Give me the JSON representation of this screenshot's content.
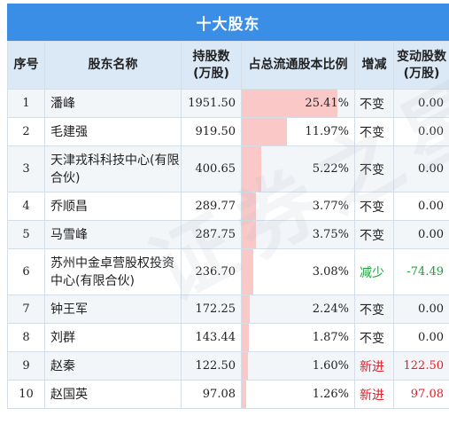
{
  "title": "十大股东",
  "headers": {
    "rank": "序号",
    "name": "股东名称",
    "shares_line1": "持股数",
    "shares_line2": "(万股)",
    "ratio": "占总流通股本比例",
    "change_type": "增减",
    "change_line1": "变动股数",
    "change_line2": "(万股)"
  },
  "rows": [
    {
      "rank": "1",
      "name": "潘峰",
      "shares": "1951.50",
      "ratio": "25.41%",
      "ratio_value": 25.41,
      "change_type": "不变",
      "change_type_color": "normal",
      "change": "0.00"
    },
    {
      "rank": "2",
      "name": "毛建强",
      "shares": "919.50",
      "ratio": "11.97%",
      "ratio_value": 11.97,
      "change_type": "不变",
      "change_type_color": "normal",
      "change": "0.00"
    },
    {
      "rank": "3",
      "name": "天津戎科科技中心(有限合伙)",
      "shares": "400.65",
      "ratio": "5.22%",
      "ratio_value": 5.22,
      "change_type": "不变",
      "change_type_color": "normal",
      "change": "0.00"
    },
    {
      "rank": "4",
      "name": "乔顺昌",
      "shares": "289.77",
      "ratio": "3.77%",
      "ratio_value": 3.77,
      "change_type": "不变",
      "change_type_color": "normal",
      "change": "0.00"
    },
    {
      "rank": "5",
      "name": "马雪峰",
      "shares": "287.75",
      "ratio": "3.75%",
      "ratio_value": 3.75,
      "change_type": "不变",
      "change_type_color": "normal",
      "change": "0.00"
    },
    {
      "rank": "6",
      "name": "苏州中金卓营股权投资中心(有限合伙)",
      "shares": "236.70",
      "ratio": "3.08%",
      "ratio_value": 3.08,
      "change_type": "减少",
      "change_type_color": "green",
      "change": "-74.49"
    },
    {
      "rank": "7",
      "name": "钟王军",
      "shares": "172.25",
      "ratio": "2.24%",
      "ratio_value": 2.24,
      "change_type": "不变",
      "change_type_color": "normal",
      "change": "0.00"
    },
    {
      "rank": "8",
      "name": "刘群",
      "shares": "143.44",
      "ratio": "1.87%",
      "ratio_value": 1.87,
      "change_type": "不变",
      "change_type_color": "normal",
      "change": "0.00"
    },
    {
      "rank": "9",
      "name": "赵秦",
      "shares": "122.50",
      "ratio": "1.60%",
      "ratio_value": 1.6,
      "change_type": "新进",
      "change_type_color": "red",
      "change": "122.50"
    },
    {
      "rank": "10",
      "name": "赵国英",
      "shares": "97.08",
      "ratio": "1.26%",
      "ratio_value": 1.26,
      "change_type": "新进",
      "change_type_color": "red",
      "change": "97.08"
    }
  ],
  "watermark": "证券之星",
  "colors": {
    "title_bg": "#3a8ee6",
    "header_bg": "#dbe9f7",
    "bar": "#fbc8c8",
    "decrease": "#20a040",
    "increase": "#e0202a"
  }
}
